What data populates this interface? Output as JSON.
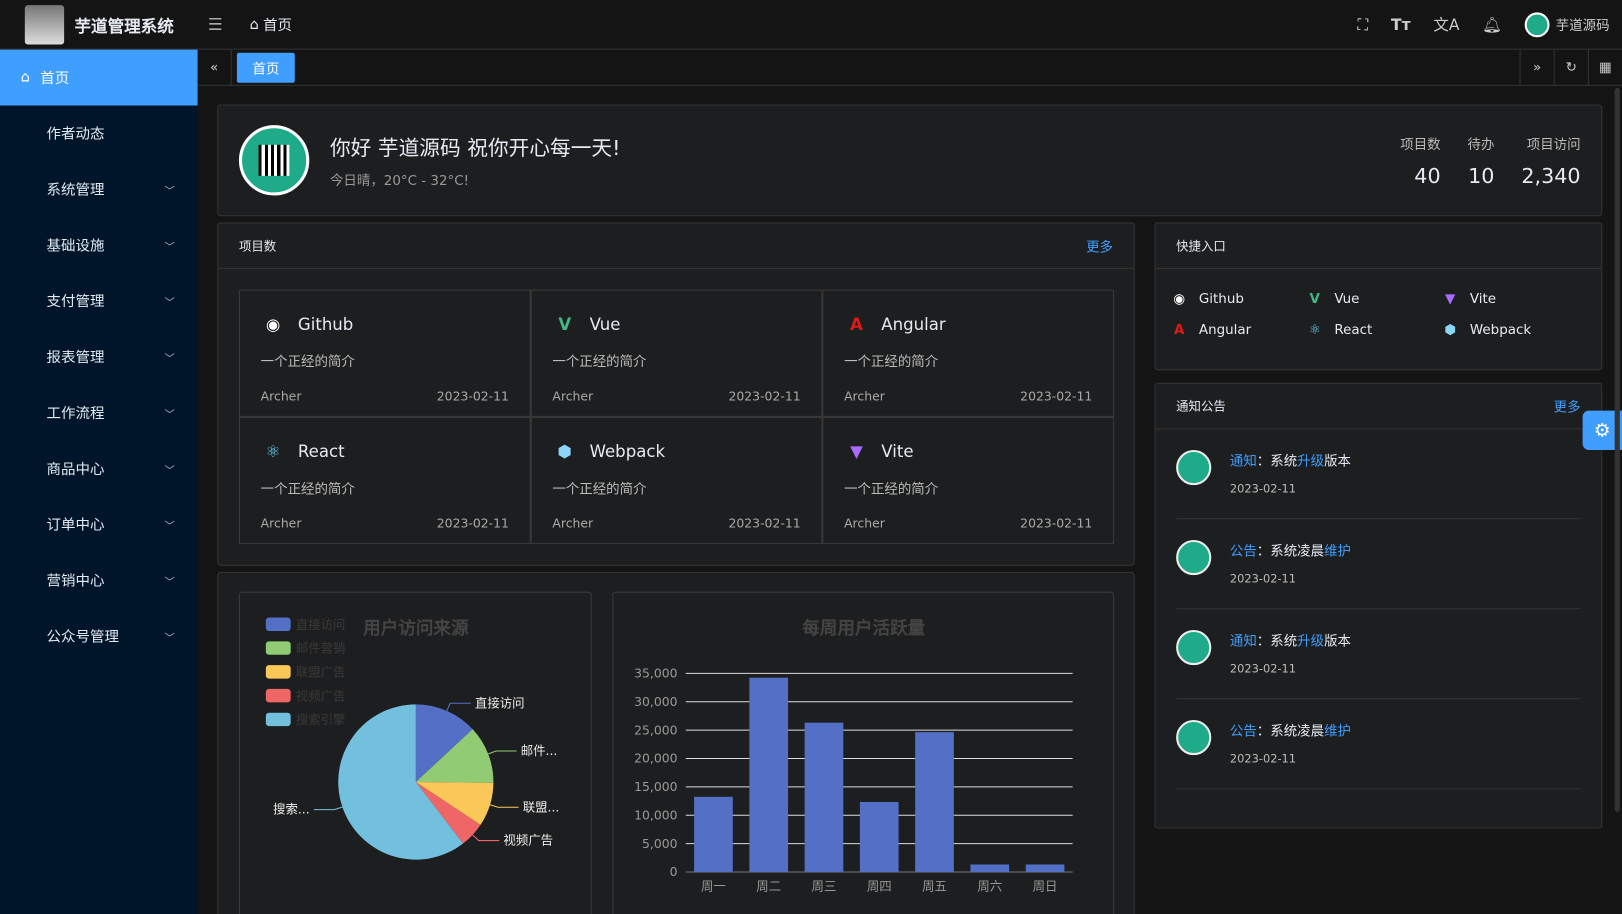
{
  "header": {
    "app_title": "芋道管理系统",
    "breadcrumb": "首页",
    "user_name": "芋道源码"
  },
  "sidebar": {
    "items": [
      {
        "label": "首页",
        "active": true
      },
      {
        "label": "作者动态"
      },
      {
        "label": "系统管理",
        "expandable": true
      },
      {
        "label": "基础设施",
        "expandable": true
      },
      {
        "label": "支付管理",
        "expandable": true
      },
      {
        "label": "报表管理",
        "expandable": true
      },
      {
        "label": "工作流程",
        "expandable": true
      },
      {
        "label": "商品中心",
        "expandable": true
      },
      {
        "label": "订单中心",
        "expandable": true
      },
      {
        "label": "营销中心",
        "expandable": true
      },
      {
        "label": "公众号管理",
        "expandable": true
      }
    ]
  },
  "tabs": [
    {
      "label": "首页",
      "active": true
    }
  ],
  "welcome": {
    "greeting": "你好 芋道源码 祝你开心每一天!",
    "weather": "今日晴，20°C - 32°C!",
    "stats": [
      {
        "label": "项目数",
        "value": "40"
      },
      {
        "label": "待办",
        "value": "10"
      },
      {
        "label": "项目访问",
        "value": "2,340"
      }
    ]
  },
  "projects": {
    "title": "项目数",
    "more": "更多",
    "items": [
      {
        "name": "Github",
        "icon": "github-icon",
        "color": "#ffffff",
        "desc": "一个正经的简介",
        "author": "Archer",
        "date": "2023-02-11"
      },
      {
        "name": "Vue",
        "icon": "vue-icon",
        "color": "#42b883",
        "desc": "一个正经的简介",
        "author": "Archer",
        "date": "2023-02-11"
      },
      {
        "name": "Angular",
        "icon": "angular-icon",
        "color": "#dd1b16",
        "desc": "一个正经的简介",
        "author": "Archer",
        "date": "2023-02-11"
      },
      {
        "name": "React",
        "icon": "react-icon",
        "color": "#61dafb",
        "desc": "一个正经的简介",
        "author": "Archer",
        "date": "2023-02-11"
      },
      {
        "name": "Webpack",
        "icon": "webpack-icon",
        "color": "#8dd6f9",
        "desc": "一个正经的简介",
        "author": "Archer",
        "date": "2023-02-11"
      },
      {
        "name": "Vite",
        "icon": "vite-icon",
        "color": "#a96bff",
        "desc": "一个正经的简介",
        "author": "Archer",
        "date": "2023-02-11"
      }
    ]
  },
  "quick": {
    "title": "快捷入口",
    "items": [
      {
        "name": "Github",
        "color": "#ffffff"
      },
      {
        "name": "Vue",
        "color": "#42b883"
      },
      {
        "name": "Vite",
        "color": "#a96bff"
      },
      {
        "name": "Angular",
        "color": "#dd1b16"
      },
      {
        "name": "React",
        "color": "#61dafb"
      },
      {
        "name": "Webpack",
        "color": "#8dd6f9"
      }
    ]
  },
  "notices": {
    "title": "通知公告",
    "more": "更多",
    "items": [
      {
        "type": "通知",
        "sep": "：",
        "pre": "系统",
        "hl": "升级",
        "post": "版本",
        "date": "2023-02-11"
      },
      {
        "type": "公告",
        "sep": "：",
        "pre": "系统凌晨",
        "hl": "维护",
        "post": "",
        "date": "2023-02-11"
      },
      {
        "type": "通知",
        "sep": "：",
        "pre": "系统",
        "hl": "升级",
        "post": "版本",
        "date": "2023-02-11"
      },
      {
        "type": "公告",
        "sep": "：",
        "pre": "系统凌晨",
        "hl": "维护",
        "post": "",
        "date": "2023-02-11"
      }
    ]
  },
  "chart_data": [
    {
      "type": "pie",
      "title": "用户访问来源",
      "legend_position": "top-left",
      "categories": [
        "直接访问",
        "邮件营销",
        "联盟广告",
        "视频广告",
        "搜索引擎"
      ],
      "slice_labels": [
        "直接访问",
        "邮件...",
        "联盟...",
        "视频广告",
        "搜索..."
      ],
      "values": [
        335,
        310,
        234,
        135,
        1548
      ],
      "colors": [
        "#5470c6",
        "#91cc75",
        "#fac858",
        "#ee6666",
        "#73c0de"
      ]
    },
    {
      "type": "bar",
      "title": "每周用户活跃量",
      "categories": [
        "周一",
        "周二",
        "周三",
        "周四",
        "周五",
        "周六",
        "周日"
      ],
      "values": [
        13253,
        34235,
        26321,
        12340,
        24643,
        1322,
        1324
      ],
      "ylim": [
        0,
        35000
      ],
      "yticks": [
        "0",
        "5,000",
        "10,000",
        "15,000",
        "20,000",
        "25,000",
        "30,000",
        "35,000"
      ],
      "grid": true,
      "color": "#5470c6"
    }
  ]
}
